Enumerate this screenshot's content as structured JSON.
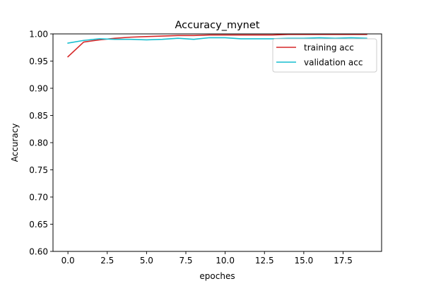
{
  "chart_data": {
    "type": "line",
    "title": "Accuracy_mynet",
    "xlabel": "epoches",
    "ylabel": "Accuracy",
    "xlim": [
      -0.95,
      19.95
    ],
    "ylim": [
      0.6,
      1.0
    ],
    "x_ticks": [
      0.0,
      2.5,
      5.0,
      7.5,
      10.0,
      12.5,
      15.0,
      17.5
    ],
    "x_tick_labels": [
      "0.0",
      "2.5",
      "5.0",
      "7.5",
      "10.0",
      "12.5",
      "15.0",
      "17.5"
    ],
    "y_ticks": [
      0.6,
      0.65,
      0.7,
      0.75,
      0.8,
      0.85,
      0.9,
      0.95,
      1.0
    ],
    "y_tick_labels": [
      "0.60",
      "0.65",
      "0.70",
      "0.75",
      "0.80",
      "0.85",
      "0.90",
      "0.95",
      "1.00"
    ],
    "grid": false,
    "legend_position": "upper right",
    "x": [
      0,
      1,
      2,
      3,
      4,
      5,
      6,
      7,
      8,
      9,
      10,
      11,
      12,
      13,
      14,
      15,
      16,
      17,
      18,
      19
    ],
    "series": [
      {
        "name": "training acc",
        "color": "#d62728",
        "values": [
          0.958,
          0.985,
          0.989,
          0.992,
          0.994,
          0.995,
          0.996,
          0.997,
          0.997,
          0.998,
          0.998,
          0.998,
          0.998,
          0.998,
          0.999,
          0.999,
          0.999,
          0.999,
          0.999,
          0.999
        ]
      },
      {
        "name": "validation acc",
        "color": "#17becf",
        "values": [
          0.983,
          0.988,
          0.991,
          0.99,
          0.99,
          0.989,
          0.99,
          0.992,
          0.99,
          0.993,
          0.993,
          0.991,
          0.991,
          0.991,
          0.992,
          0.992,
          0.993,
          0.992,
          0.993,
          0.992
        ]
      }
    ]
  }
}
